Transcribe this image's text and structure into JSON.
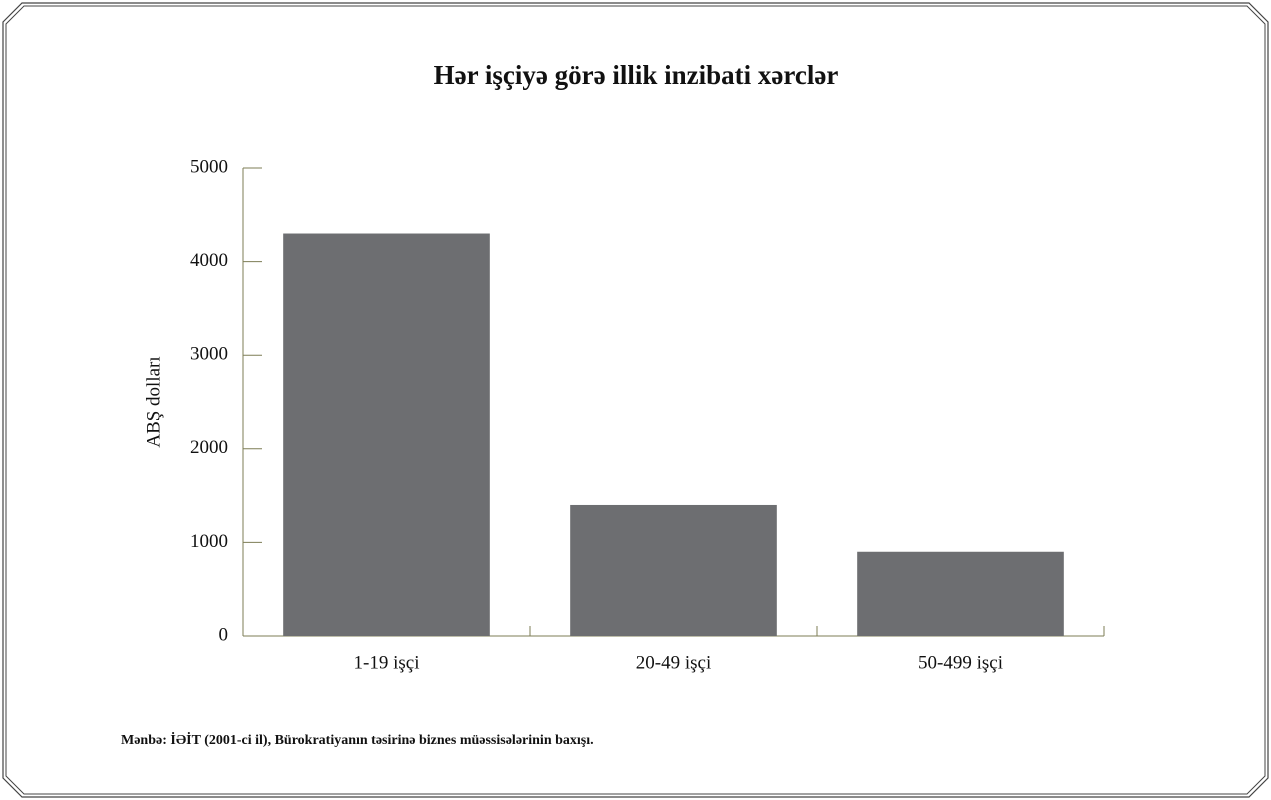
{
  "chart_data": {
    "type": "bar",
    "title": "Hər işçiyə görə illik inzibati xərclər",
    "y_label": "ABŞ dolları",
    "source": "Mənbə: İƏİT (2001-ci il), Bürokratiyanın təsirinə biznes müəssisələrinin baxışı.",
    "categories": [
      "1-19 işçi",
      "20-49 işçi",
      "50-499 işçi"
    ],
    "values": [
      4300,
      1400,
      900
    ],
    "color": "#6d6e71",
    "ylim": [
      0,
      5000
    ],
    "yticks": [
      0,
      1000,
      2000,
      3000,
      4000,
      5000
    ],
    "grid": false
  }
}
